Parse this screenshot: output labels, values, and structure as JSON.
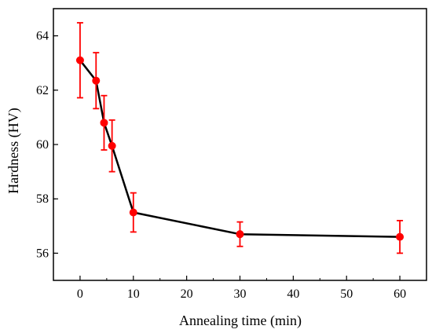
{
  "chart_data": {
    "type": "line",
    "title": "",
    "xlabel": "Annealing time (min)",
    "ylabel": "Hardness (HV)",
    "xlim": [
      -5,
      65
    ],
    "ylim": [
      55,
      65
    ],
    "xticks": [
      0,
      10,
      20,
      30,
      40,
      50,
      60
    ],
    "yticks": [
      56,
      58,
      60,
      62,
      64
    ],
    "grid": false,
    "legend": "none",
    "series": [
      {
        "x": [
          0,
          3,
          4.5,
          6,
          10,
          30,
          60
        ],
        "y": [
          63.1,
          62.35,
          60.8,
          59.95,
          57.5,
          56.7,
          56.6
        ],
        "error": [
          1.38,
          1.03,
          1.0,
          0.95,
          0.72,
          0.45,
          0.6
        ],
        "line_color": "#000000",
        "marker_color": "#ff0000",
        "error_color": "#ff0000"
      }
    ]
  }
}
